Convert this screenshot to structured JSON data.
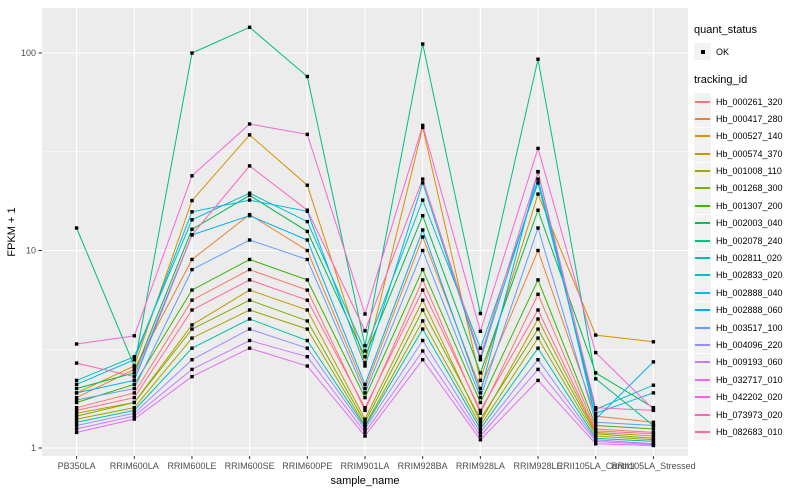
{
  "figure": {
    "panel_background": "#ECECEC",
    "grid_color": "#FFFFFF",
    "point_color": "#000000",
    "axis_text_color": "#4D4D4D",
    "axis_tick_color": "#333333"
  },
  "legend": {
    "quant_status": {
      "title": "quant_status",
      "items": [
        {
          "label": "OK",
          "symbol": "black-point"
        }
      ]
    },
    "tracking_id": {
      "title": "tracking_id"
    }
  },
  "chart_data": {
    "type": "line",
    "title": "",
    "xlabel": "sample_name",
    "ylabel": "FPKM + 1",
    "y_scale": "log10",
    "y_ticks": [
      1,
      10,
      100
    ],
    "y_tick_labels": [
      "1",
      "10",
      "100"
    ],
    "y_minor_ticks": [
      3.162,
      31.62
    ],
    "ylim": [
      1,
      160
    ],
    "grid": true,
    "legend_position": "right",
    "marker": "small-black-square",
    "categories": [
      "PB350LA",
      "RRIM600LA",
      "RRIM600LE",
      "RRIM600SE",
      "RRIM600PE",
      "RRIM901LA",
      "RRIM928BA",
      "RRIM928LA",
      "RRIM928LE",
      "RRII105LA_Control",
      "RRII105LA_Stressed"
    ],
    "series": [
      {
        "name": "Hb_000261_320",
        "color": "#F8766D",
        "values": [
          1.6,
          1.9,
          5.6,
          8.0,
          6.3,
          1.55,
          7.1,
          1.5,
          6.0,
          1.25,
          1.2
        ]
      },
      {
        "name": "Hb_000417_280",
        "color": "#EA8331",
        "values": [
          1.8,
          2.5,
          9.0,
          15.2,
          10.0,
          2.0,
          11.7,
          2.0,
          10.0,
          1.45,
          1.35
        ]
      },
      {
        "name": "Hb_000527_140",
        "color": "#D89000",
        "values": [
          1.9,
          2.6,
          17.9,
          38.5,
          21.4,
          2.7,
          42.0,
          2.2,
          19.3,
          3.73,
          3.45
        ]
      },
      {
        "name": "Hb_000574_370",
        "color": "#C09B00",
        "values": [
          1.5,
          1.7,
          4.2,
          6.3,
          5.0,
          1.4,
          5.6,
          1.35,
          4.5,
          1.2,
          1.15
        ]
      },
      {
        "name": "Hb_001008_110",
        "color": "#A3A500",
        "values": [
          1.4,
          1.6,
          3.6,
          5.0,
          4.0,
          1.3,
          4.4,
          1.3,
          3.6,
          1.15,
          1.1
        ]
      },
      {
        "name": "Hb_001268_300",
        "color": "#7CAE00",
        "values": [
          1.45,
          1.7,
          4.0,
          5.6,
          4.4,
          1.35,
          5.0,
          1.4,
          4.0,
          1.18,
          1.12
        ]
      },
      {
        "name": "Hb_001307_200",
        "color": "#39B600",
        "values": [
          1.7,
          2.1,
          6.3,
          9.0,
          7.1,
          1.8,
          8.0,
          1.7,
          7.1,
          1.3,
          1.25
        ]
      },
      {
        "name": "Hb_002003_040",
        "color": "#00BB4E",
        "values": [
          2.0,
          2.4,
          12.8,
          19.0,
          12.5,
          2.9,
          15.0,
          2.4,
          16.0,
          2.4,
          1.6
        ]
      },
      {
        "name": "Hb_002078_240",
        "color": "#00BF7D",
        "values": [
          13.0,
          2.6,
          100.0,
          135.0,
          76.0,
          3.3,
          111.0,
          4.8,
          93.0,
          2.24,
          1.3
        ]
      },
      {
        "name": "Hb_002811_020",
        "color": "#00C1A3",
        "values": [
          1.35,
          1.55,
          3.2,
          4.5,
          3.5,
          1.28,
          4.0,
          1.25,
          3.2,
          1.12,
          1.08
        ]
      },
      {
        "name": "Hb_002833_020",
        "color": "#00BFC4",
        "values": [
          2.2,
          2.9,
          14.3,
          19.5,
          14.0,
          3.1,
          18.0,
          3.2,
          22.0,
          1.57,
          2.08
        ]
      },
      {
        "name": "Hb_002888_040",
        "color": "#00BAE0",
        "values": [
          2.1,
          2.8,
          15.7,
          18.0,
          15.8,
          2.6,
          22.0,
          2.8,
          23.0,
          1.5,
          1.9
        ]
      },
      {
        "name": "Hb_002888_060",
        "color": "#00B0F6",
        "values": [
          1.9,
          2.2,
          12.0,
          15.0,
          11.3,
          2.1,
          12.7,
          1.9,
          25.1,
          1.4,
          2.73
        ]
      },
      {
        "name": "Hb_003517_100",
        "color": "#619CFF",
        "values": [
          1.75,
          2.0,
          8.0,
          11.3,
          9.0,
          1.9,
          10.0,
          1.8,
          13.0,
          1.35,
          1.3
        ]
      },
      {
        "name": "Hb_004096_220",
        "color": "#9590FF",
        "values": [
          1.3,
          1.5,
          2.8,
          4.0,
          3.2,
          1.25,
          3.5,
          1.2,
          2.8,
          1.1,
          1.05
        ]
      },
      {
        "name": "Hb_009193_060",
        "color": "#C77CFF",
        "values": [
          1.25,
          1.45,
          2.5,
          3.5,
          2.9,
          1.2,
          3.1,
          1.15,
          2.5,
          1.08,
          1.04
        ]
      },
      {
        "name": "Hb_032717_010",
        "color": "#E76BF3",
        "values": [
          1.2,
          1.4,
          2.3,
          3.2,
          2.6,
          1.15,
          2.8,
          1.1,
          2.2,
          1.05,
          1.03
        ]
      },
      {
        "name": "Hb_042202_020",
        "color": "#FA62DB",
        "values": [
          3.36,
          3.7,
          23.9,
          43.7,
          38.7,
          4.77,
          43.0,
          3.9,
          32.9,
          3.04,
          1.57
        ]
      },
      {
        "name": "Hb_073973_020",
        "color": "#FF62BC",
        "values": [
          2.69,
          2.3,
          12.0,
          26.8,
          16.0,
          3.92,
          23.0,
          2.9,
          25.0,
          1.6,
          1.55
        ]
      },
      {
        "name": "Hb_082683_010",
        "color": "#FF6A98",
        "values": [
          1.55,
          1.8,
          5.0,
          7.1,
          5.6,
          1.6,
          6.3,
          1.55,
          5.0,
          1.22,
          1.18
        ]
      }
    ]
  }
}
